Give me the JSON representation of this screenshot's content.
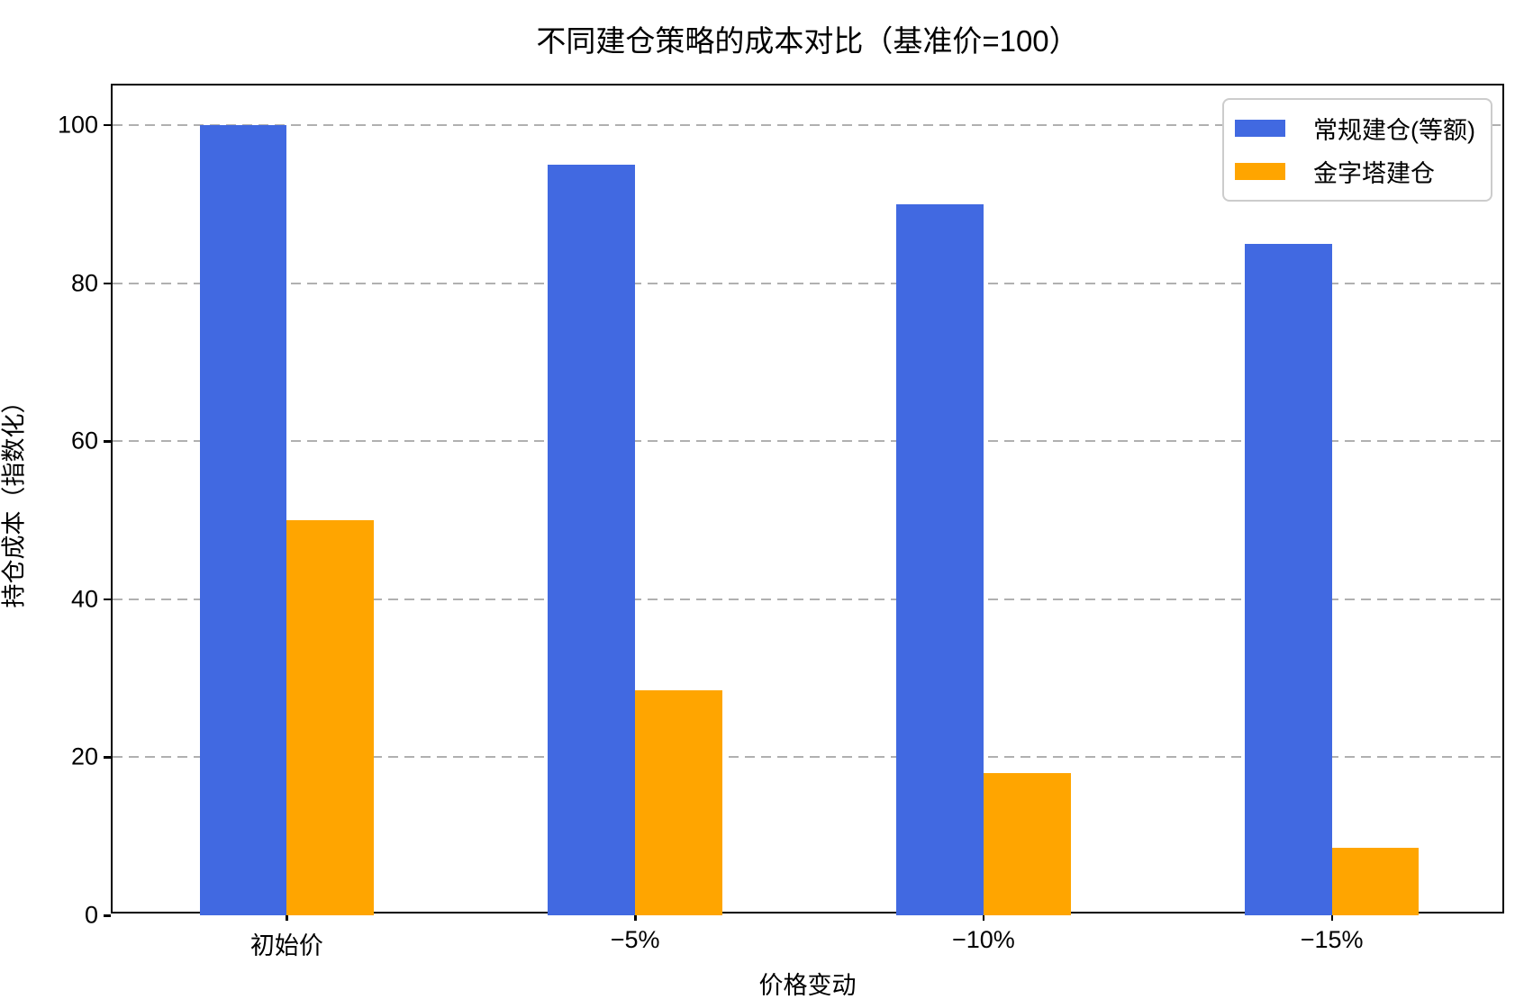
{
  "chart_data": {
    "type": "bar",
    "title": "不同建仓策略的成本对比（基准价=100）",
    "xlabel": "价格变动",
    "ylabel": "持仓成本（指数化）",
    "categories": [
      "初始价",
      "−5%",
      "−10%",
      "−15%"
    ],
    "series": [
      {
        "name": "常规建仓(等额)",
        "color": "#4169E1",
        "values": [
          100,
          95,
          90,
          85
        ]
      },
      {
        "name": "金字塔建仓",
        "color": "#FFA500",
        "values": [
          50,
          28.5,
          18,
          8.5
        ]
      }
    ],
    "ylim": [
      0,
      105
    ],
    "yticks": [
      0,
      20,
      40,
      60,
      80,
      100
    ],
    "grid": "horizontal-dashed",
    "legend_position": "upper-right",
    "bar_group_width_fraction": 0.5
  },
  "colors": {
    "background": "#ffffff",
    "spine": "#000000",
    "grid": "#b0b0b0",
    "legend_border": "#cccccc",
    "series_blue": "#4169E1",
    "series_orange": "#FFA500"
  }
}
